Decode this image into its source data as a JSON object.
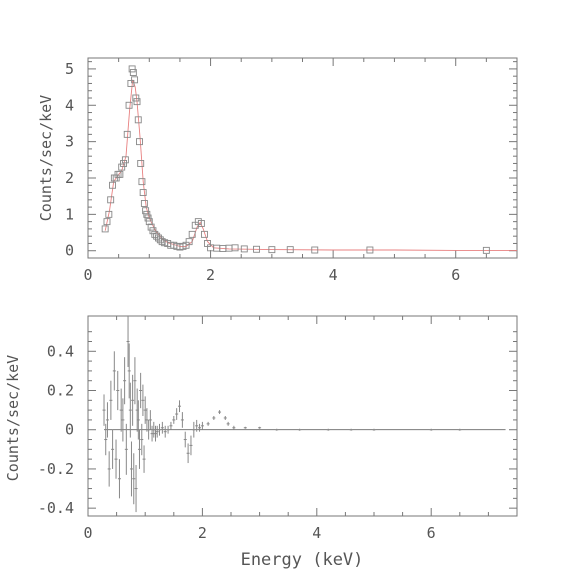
{
  "chart_data": [
    {
      "type": "scatter",
      "ylabel": "Counts/sec/keV",
      "xlabel": "",
      "xlim": [
        0,
        7
      ],
      "ylim": [
        -0.2,
        5.3
      ],
      "xticks": [
        "0",
        "2",
        "4",
        "6"
      ],
      "yticks": [
        "0",
        "1",
        "2",
        "3",
        "4",
        "5"
      ],
      "marker": "open-square",
      "marker_color": "#888888",
      "model_color": "#e88080",
      "data": {
        "x": [
          0.28,
          0.31,
          0.34,
          0.37,
          0.4,
          0.43,
          0.46,
          0.49,
          0.52,
          0.55,
          0.58,
          0.61,
          0.64,
          0.67,
          0.7,
          0.72,
          0.74,
          0.76,
          0.78,
          0.8,
          0.82,
          0.84,
          0.86,
          0.88,
          0.9,
          0.92,
          0.94,
          0.96,
          0.98,
          1.0,
          1.03,
          1.06,
          1.09,
          1.12,
          1.15,
          1.18,
          1.21,
          1.25,
          1.3,
          1.35,
          1.4,
          1.45,
          1.5,
          1.55,
          1.6,
          1.65,
          1.7,
          1.75,
          1.8,
          1.85,
          1.9,
          1.95,
          2.0,
          2.1,
          2.2,
          2.3,
          2.4,
          2.55,
          2.75,
          3.0,
          3.3,
          3.7,
          4.6,
          6.5
        ],
        "y": [
          0.6,
          0.8,
          1.0,
          1.4,
          1.8,
          2.0,
          2.0,
          2.1,
          2.1,
          2.3,
          2.4,
          2.5,
          3.2,
          4.0,
          4.6,
          5.0,
          4.9,
          4.7,
          4.2,
          4.1,
          3.6,
          3.0,
          2.4,
          1.9,
          1.6,
          1.3,
          1.1,
          1.0,
          0.9,
          0.8,
          0.65,
          0.55,
          0.45,
          0.4,
          0.35,
          0.3,
          0.25,
          0.22,
          0.2,
          0.15,
          0.15,
          0.12,
          0.1,
          0.12,
          0.15,
          0.25,
          0.45,
          0.7,
          0.8,
          0.75,
          0.45,
          0.2,
          0.08,
          0.07,
          0.06,
          0.07,
          0.08,
          0.05,
          0.04,
          0.03,
          0.03,
          0.02,
          0.02,
          0.01
        ]
      },
      "model": {
        "x": [
          0.28,
          0.35,
          0.42,
          0.48,
          0.55,
          0.62,
          0.68,
          0.73,
          0.77,
          0.8,
          0.85,
          0.9,
          0.95,
          1.0,
          1.1,
          1.2,
          1.3,
          1.4,
          1.5,
          1.6,
          1.7,
          1.78,
          1.83,
          1.88,
          1.95,
          2.05,
          2.3,
          3.0,
          4.0,
          5.0,
          6.0,
          7.0
        ],
        "y": [
          0.55,
          1.1,
          1.9,
          2.05,
          2.2,
          2.6,
          3.9,
          4.7,
          4.5,
          4.1,
          3.1,
          1.9,
          1.2,
          0.9,
          0.55,
          0.35,
          0.22,
          0.17,
          0.12,
          0.12,
          0.25,
          0.65,
          0.78,
          0.6,
          0.25,
          0.08,
          0.05,
          0.03,
          0.02,
          0.02,
          0.01,
          0.01
        ]
      }
    },
    {
      "type": "scatter",
      "ylabel": "Counts/sec/keV",
      "xlabel": "Energy (keV)",
      "xlim": [
        0,
        7.5
      ],
      "ylim": [
        -0.44,
        0.58
      ],
      "xticks": [
        "0",
        "2",
        "4",
        "6"
      ],
      "yticks": [
        "-0.4",
        "-0.2",
        "0",
        "0.2",
        "0.4"
      ],
      "marker": "error-bar",
      "marker_color": "#888888",
      "zero_line": true,
      "residuals": {
        "x": [
          0.28,
          0.31,
          0.34,
          0.37,
          0.4,
          0.43,
          0.46,
          0.49,
          0.52,
          0.55,
          0.58,
          0.61,
          0.64,
          0.67,
          0.7,
          0.72,
          0.74,
          0.76,
          0.78,
          0.8,
          0.82,
          0.84,
          0.86,
          0.88,
          0.9,
          0.92,
          0.94,
          0.96,
          0.98,
          1.0,
          1.03,
          1.06,
          1.09,
          1.12,
          1.15,
          1.18,
          1.21,
          1.25,
          1.3,
          1.35,
          1.4,
          1.45,
          1.5,
          1.55,
          1.6,
          1.65,
          1.7,
          1.75,
          1.8,
          1.85,
          1.9,
          1.95,
          2.0,
          2.1,
          2.2,
          2.3,
          2.4,
          2.45,
          2.55,
          2.75,
          3.0,
          3.3,
          3.7,
          4.2,
          4.6,
          5.0,
          6.0,
          6.5
        ],
        "y": [
          0.1,
          -0.05,
          0.05,
          -0.2,
          0.15,
          -0.1,
          0.3,
          -0.15,
          0.2,
          -0.25,
          0.1,
          0.05,
          0.25,
          -0.1,
          0.45,
          0.3,
          0.1,
          -0.2,
          0.15,
          -0.25,
          0.25,
          -0.3,
          0.1,
          0.05,
          -0.1,
          0.2,
          -0.05,
          0.15,
          -0.15,
          0.1,
          0.05,
          0.0,
          0.05,
          -0.02,
          0.0,
          -0.02,
          -0.01,
          0.0,
          0.01,
          -0.01,
          0.0,
          0.02,
          0.05,
          0.08,
          0.12,
          0.05,
          -0.05,
          -0.12,
          -0.08,
          0.0,
          0.02,
          0.01,
          0.02,
          0.03,
          0.06,
          0.09,
          0.06,
          0.03,
          0.01,
          0.01,
          0.01,
          0.0,
          0.0,
          0.0,
          0.0,
          0.0,
          0.0,
          0.0
        ],
        "err": [
          0.08,
          0.08,
          0.09,
          0.09,
          0.1,
          0.1,
          0.1,
          0.1,
          0.1,
          0.1,
          0.11,
          0.11,
          0.12,
          0.13,
          0.13,
          0.14,
          0.14,
          0.14,
          0.13,
          0.13,
          0.12,
          0.12,
          0.11,
          0.1,
          0.1,
          0.09,
          0.08,
          0.08,
          0.07,
          0.07,
          0.06,
          0.05,
          0.05,
          0.04,
          0.04,
          0.04,
          0.03,
          0.03,
          0.03,
          0.03,
          0.02,
          0.02,
          0.02,
          0.03,
          0.03,
          0.04,
          0.04,
          0.05,
          0.05,
          0.04,
          0.03,
          0.02,
          0.02,
          0.01,
          0.01,
          0.01,
          0.01,
          0.01,
          0.01,
          0.005,
          0.005,
          0.005,
          0.005,
          0.005,
          0.005,
          0.005,
          0.005,
          0.005
        ]
      }
    }
  ]
}
